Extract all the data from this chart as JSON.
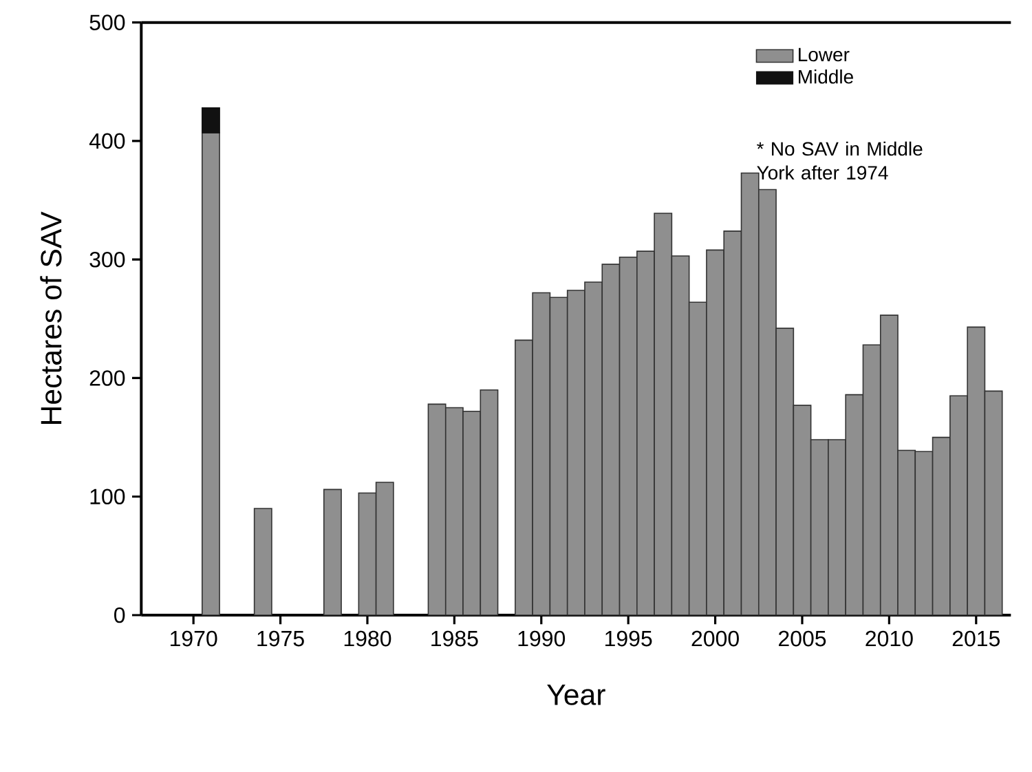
{
  "chart_data": {
    "type": "bar",
    "stacked": true,
    "xlabel": "Year",
    "ylabel": "Hectares of SAV",
    "x": [
      1971,
      1974,
      1978,
      1980,
      1981,
      1984,
      1985,
      1986,
      1987,
      1989,
      1990,
      1991,
      1992,
      1993,
      1994,
      1995,
      1996,
      1997,
      1998,
      1999,
      2000,
      2001,
      2002,
      2003,
      2004,
      2005,
      2006,
      2007,
      2008,
      2009,
      2010,
      2011,
      2012,
      2013,
      2014,
      2015,
      2016
    ],
    "series": [
      {
        "name": "Lower",
        "color": "#8f8f8f",
        "values": [
          407,
          90,
          106,
          103,
          112,
          178,
          175,
          172,
          190,
          232,
          272,
          268,
          274,
          281,
          296,
          302,
          307,
          339,
          303,
          264,
          308,
          324,
          373,
          359,
          242,
          177,
          148,
          148,
          186,
          228,
          253,
          139,
          138,
          150,
          185,
          243,
          189
        ]
      },
      {
        "name": "Middle",
        "color": "#111111",
        "values": [
          21,
          null,
          null,
          null,
          null,
          null,
          null,
          null,
          null,
          null,
          null,
          null,
          null,
          null,
          null,
          null,
          null,
          null,
          null,
          null,
          null,
          null,
          null,
          null,
          null,
          null,
          null,
          null,
          null,
          null,
          null,
          null,
          null,
          null,
          null,
          null,
          null
        ]
      }
    ],
    "xlim": [
      1967,
      2017
    ],
    "xticks": [
      1970,
      1975,
      1980,
      1985,
      1990,
      1995,
      2000,
      2005,
      2010,
      2015
    ],
    "ylim": [
      0,
      500
    ],
    "yticks": [
      0,
      100,
      200,
      300,
      400,
      500
    ],
    "legend": "top right",
    "grid": false,
    "annotations": [
      "* No SAV in Middle York after 1974"
    ]
  }
}
